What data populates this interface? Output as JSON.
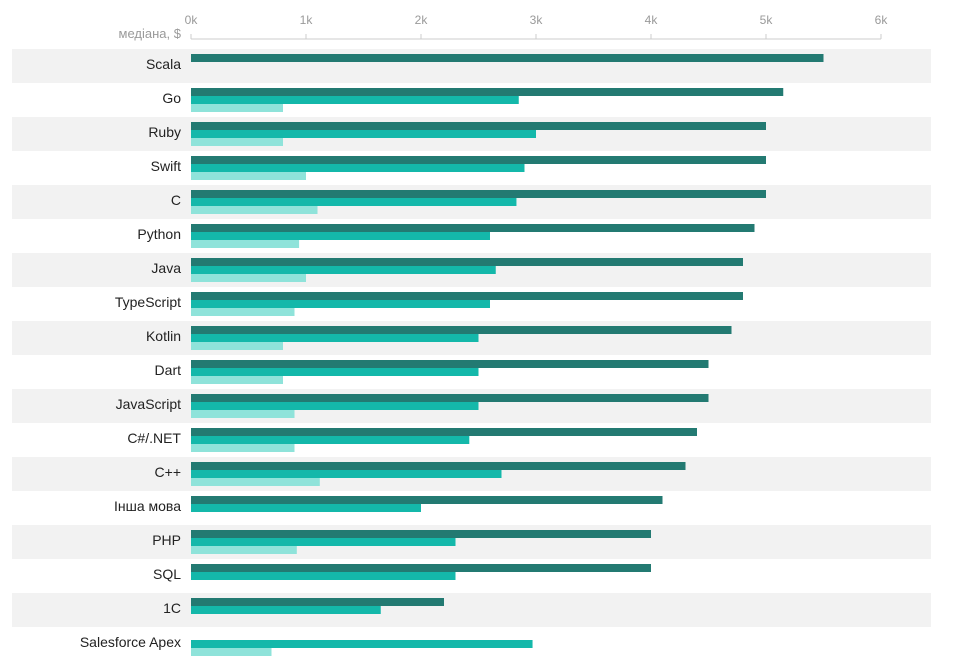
{
  "chart_data": {
    "type": "bar",
    "orientation": "horizontal",
    "unit_label": "медіана, $",
    "xlim": [
      0,
      6000
    ],
    "ticks": [
      0,
      1000,
      2000,
      3000,
      4000,
      5000,
      6000
    ],
    "tick_labels": [
      "0k",
      "1k",
      "2k",
      "3k",
      "4k",
      "5k",
      "6k"
    ],
    "categories": [
      "Scala",
      "Go",
      "Ruby",
      "Swift",
      "C",
      "Python",
      "Java",
      "TypeScript",
      "Kotlin",
      "Dart",
      "JavaScript",
      "C#/.NET",
      "C++",
      "Інша мова",
      "PHP",
      "SQL",
      "1C",
      "Salesforce Apex"
    ],
    "series": [
      {
        "color": "#237a72",
        "values": [
          5500,
          5150,
          5000,
          5000,
          5000,
          4900,
          4800,
          4800,
          4700,
          4500,
          4500,
          4400,
          4300,
          4100,
          4000,
          4000,
          2200,
          null
        ]
      },
      {
        "color": "#14b8aa",
        "values": [
          null,
          2850,
          3000,
          2900,
          2830,
          2600,
          2650,
          2600,
          2500,
          2500,
          2500,
          2420,
          2700,
          2000,
          2300,
          2300,
          1650,
          2970
        ]
      },
      {
        "color": "#8fe3da",
        "values": [
          null,
          800,
          800,
          1000,
          1100,
          940,
          1000,
          900,
          800,
          800,
          900,
          900,
          1120,
          null,
          920,
          null,
          null,
          700
        ]
      }
    ],
    "row_band_color": "#f2f2f2",
    "grid": false
  }
}
